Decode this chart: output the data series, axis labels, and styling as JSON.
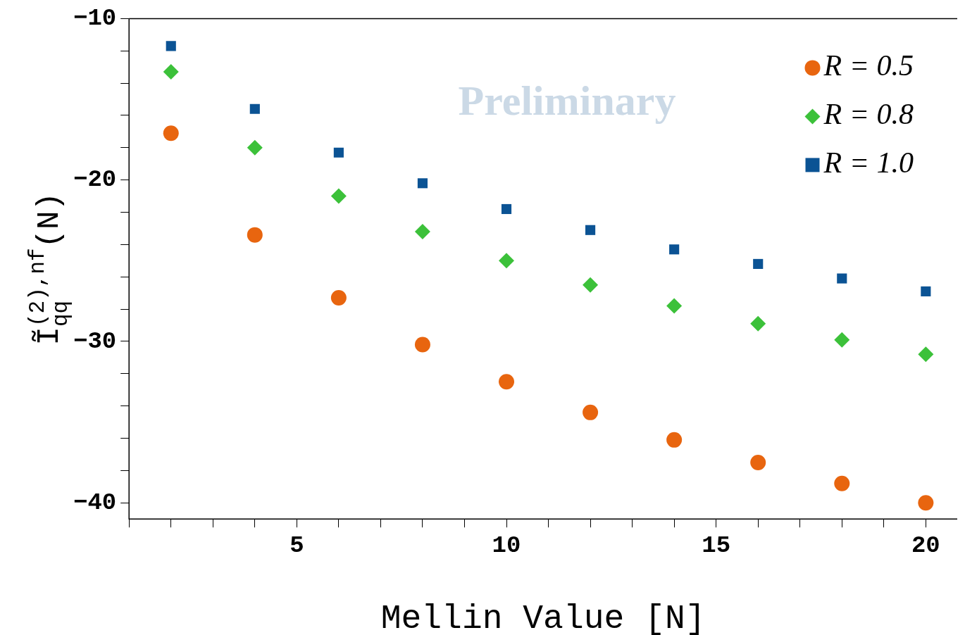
{
  "chart_data": {
    "type": "scatter",
    "xlabel": "Mellin Value [N]",
    "ylabel": "Ĩ$_{qq}$$^{(2),nf}$(N)",
    "annotations": [
      "Preliminary"
    ],
    "xlim": [
      1,
      20.75
    ],
    "ylim": [
      -41,
      -10
    ],
    "xticks": [
      {
        "value": 1,
        "label": null
      },
      {
        "value": 2,
        "label": null
      },
      {
        "value": 3,
        "label": null
      },
      {
        "value": 4,
        "label": null
      },
      5,
      {
        "value": 6,
        "label": null
      },
      {
        "value": 7,
        "label": null
      },
      {
        "value": 8,
        "label": null
      },
      {
        "value": 9,
        "label": null
      },
      10,
      {
        "value": 11,
        "label": null
      },
      {
        "value": 12,
        "label": null
      },
      {
        "value": 13,
        "label": null
      },
      {
        "value": 14,
        "label": null
      },
      15,
      {
        "value": 16,
        "label": null
      },
      {
        "value": 17,
        "label": null
      },
      {
        "value": 18,
        "label": null
      },
      {
        "value": 19,
        "label": null
      },
      20
    ],
    "yticks": [
      -40,
      {
        "value": -38,
        "label": null
      },
      {
        "value": -36,
        "label": null
      },
      {
        "value": -34,
        "label": null
      },
      {
        "value": -32,
        "label": null
      },
      -30,
      {
        "value": -28,
        "label": null
      },
      {
        "value": -26,
        "label": null
      },
      {
        "value": -24,
        "label": null
      },
      {
        "value": -22,
        "label": null
      },
      -20,
      {
        "value": -18,
        "label": null
      },
      {
        "value": -16,
        "label": null
      },
      {
        "value": -14,
        "label": null
      },
      {
        "value": -12,
        "label": null
      },
      -10
    ],
    "x": [
      2,
      4,
      6,
      8,
      10,
      12,
      14,
      16,
      18,
      20
    ],
    "legend": "top right",
    "grid": false,
    "series": [
      {
        "name": "R = 0.5",
        "color": "#e8650f",
        "marker": "circle",
        "values": [
          -17.1,
          -23.4,
          -27.3,
          -30.2,
          -32.5,
          -34.4,
          -36.1,
          -37.5,
          -38.8,
          -40.0
        ]
      },
      {
        "name": "R = 0.8",
        "color": "#3cc13a",
        "marker": "diamond",
        "values": [
          -13.3,
          -18.0,
          -21.0,
          -23.2,
          -25.0,
          -26.5,
          -27.8,
          -28.9,
          -29.9,
          -30.8
        ]
      },
      {
        "name": "R = 1.0",
        "color": "#0b5394",
        "marker": "square",
        "values": [
          -11.7,
          -15.6,
          -18.3,
          -20.2,
          -21.8,
          -23.1,
          -24.3,
          -25.2,
          -26.1,
          -26.9
        ]
      }
    ]
  }
}
